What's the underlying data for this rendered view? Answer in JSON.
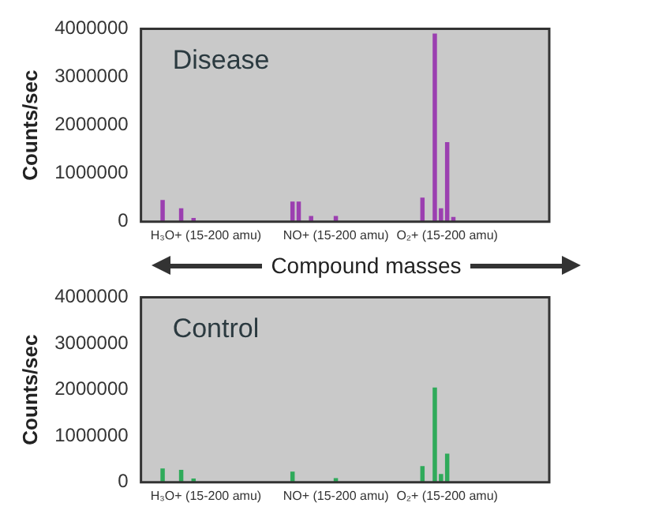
{
  "chart_data": [
    {
      "type": "bar",
      "title": "Disease",
      "xlabel": "Compound masses",
      "ylabel": "Counts/sec",
      "categories": [
        null,
        null,
        null,
        null,
        null,
        null,
        null,
        null,
        null,
        null,
        "H₃O+ (15-200 amu)",
        null,
        null,
        null,
        null,
        null,
        null,
        null,
        null,
        null,
        null,
        null,
        null,
        null,
        null,
        null,
        null,
        null,
        null,
        null,
        null,
        "NO+ (15-200 amu)",
        null,
        null,
        null,
        null,
        null,
        null,
        null,
        null,
        null,
        null,
        null,
        null,
        null,
        null,
        null,
        null,
        null,
        "O₂+ (15-200 amu)",
        null,
        null,
        null,
        null,
        null,
        null,
        null,
        null,
        null,
        null,
        null,
        null,
        null,
        null,
        null,
        null
      ],
      "values": [
        null,
        null,
        null,
        450000,
        null,
        null,
        280000,
        null,
        80000,
        null,
        null,
        null,
        null,
        null,
        null,
        null,
        null,
        null,
        null,
        null,
        null,
        null,
        null,
        null,
        420000,
        420000,
        null,
        120000,
        null,
        null,
        null,
        120000,
        null,
        null,
        null,
        null,
        null,
        null,
        null,
        null,
        null,
        null,
        null,
        null,
        null,
        500000,
        null,
        3900000,
        280000,
        1650000,
        100000,
        null,
        null,
        null,
        null,
        null,
        null,
        null,
        null,
        null,
        null,
        null,
        null,
        null,
        null,
        null
      ],
      "color": "#9b3fb0",
      "ylim": [
        0,
        4000000
      ],
      "yticks": [
        0,
        1000000,
        2000000,
        3000000,
        4000000
      ],
      "grid": false
    },
    {
      "type": "bar",
      "title": "Control",
      "ylabel": "Counts/sec",
      "categories": [
        null,
        null,
        null,
        null,
        null,
        null,
        null,
        null,
        null,
        null,
        "H₃O+ (15-200 amu)",
        null,
        null,
        null,
        null,
        null,
        null,
        null,
        null,
        null,
        null,
        null,
        null,
        null,
        null,
        null,
        null,
        null,
        null,
        null,
        null,
        "NO+ (15-200 amu)",
        null,
        null,
        null,
        null,
        null,
        null,
        null,
        null,
        null,
        null,
        null,
        null,
        null,
        null,
        null,
        null,
        null,
        "O₂+ (15-200 amu)",
        null,
        null,
        null,
        null,
        null,
        null,
        null,
        null,
        null,
        null,
        null,
        null,
        null,
        null,
        null,
        null
      ],
      "values": [
        null,
        null,
        null,
        300000,
        null,
        null,
        270000,
        null,
        80000,
        null,
        null,
        null,
        null,
        null,
        null,
        null,
        null,
        null,
        null,
        null,
        null,
        null,
        null,
        null,
        230000,
        null,
        null,
        null,
        null,
        null,
        null,
        90000,
        null,
        null,
        null,
        null,
        null,
        null,
        null,
        null,
        null,
        null,
        null,
        null,
        null,
        350000,
        null,
        2050000,
        180000,
        620000,
        null,
        null,
        null,
        null,
        null,
        null,
        null,
        null,
        null,
        null,
        null,
        null,
        null,
        null,
        null,
        null
      ],
      "color": "#2faa5a",
      "ylim": [
        0,
        4000000
      ],
      "yticks": [
        0,
        1000000,
        2000000,
        3000000,
        4000000
      ],
      "grid": false
    }
  ]
}
